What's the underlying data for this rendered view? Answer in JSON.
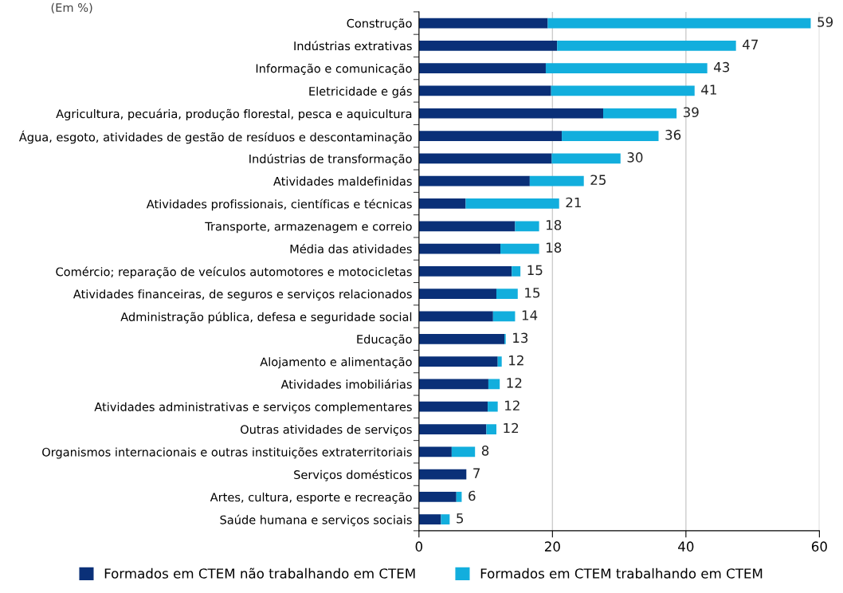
{
  "chart_data": {
    "type": "bar",
    "orientation": "horizontal",
    "stacked": true,
    "subtitle": "(Em %)",
    "categories": [
      "Construção",
      "Indústrias extrativas",
      "Informação e comunicação",
      "Eletricidade e gás",
      "Agricultura, pecuária, produção florestal, pesca e aquicultura",
      "Água, esgoto, atividades de gestão de resíduos e descontaminação",
      "Indústrias de transformação",
      "Atividades maldefinidas",
      "Atividades profissionais, científicas e técnicas",
      "Transporte, armazenagem e correio",
      "Média das atividades",
      "Comércio; reparação de veículos automotores e motocicletas",
      "Atividades financeiras, de seguros e serviços relacionados",
      "Administração pública, defesa e seguridade social",
      "Educação",
      "Alojamento e alimentação",
      "Atividades imobiliárias",
      "Atividades administrativas e serviços complementares",
      "Outras atividades de serviços",
      "Organismos internacionais e outras instituições extraterritoriais",
      "Serviços domésticos",
      "Artes, cultura, esporte e recreação",
      "Saúde humana e serviços sociais"
    ],
    "series": [
      {
        "name": "Formados em CTEM não trabalhando em CTEM",
        "color": "#0a3078",
        "values": [
          19.3,
          20.7,
          19.0,
          19.8,
          27.6,
          21.4,
          19.9,
          16.6,
          7.0,
          14.4,
          12.2,
          13.9,
          11.6,
          11.1,
          12.8,
          11.8,
          10.4,
          10.3,
          10.1,
          4.9,
          7.1,
          5.6,
          3.3
        ]
      },
      {
        "name": "Formados em CTEM trabalhando em CTEM",
        "color": "#12aedd",
        "values": [
          39.4,
          26.8,
          24.2,
          21.5,
          11.0,
          14.5,
          10.3,
          8.1,
          14.0,
          3.6,
          5.8,
          1.3,
          3.2,
          3.3,
          0.2,
          0.6,
          1.7,
          1.5,
          1.5,
          3.5,
          0,
          0.8,
          1.3
        ]
      }
    ],
    "totals": [
      "59",
      "47",
      "43",
      "41",
      "39",
      "36",
      "30",
      "25",
      "21",
      "18",
      "18",
      "15",
      "15",
      "14",
      "13",
      "12",
      "12",
      "12",
      "12",
      "8",
      "7",
      "6",
      "5"
    ],
    "xlim": [
      0,
      60
    ],
    "xticks": [
      0,
      20,
      40,
      60
    ],
    "grid": "x",
    "legend": "bottom"
  }
}
